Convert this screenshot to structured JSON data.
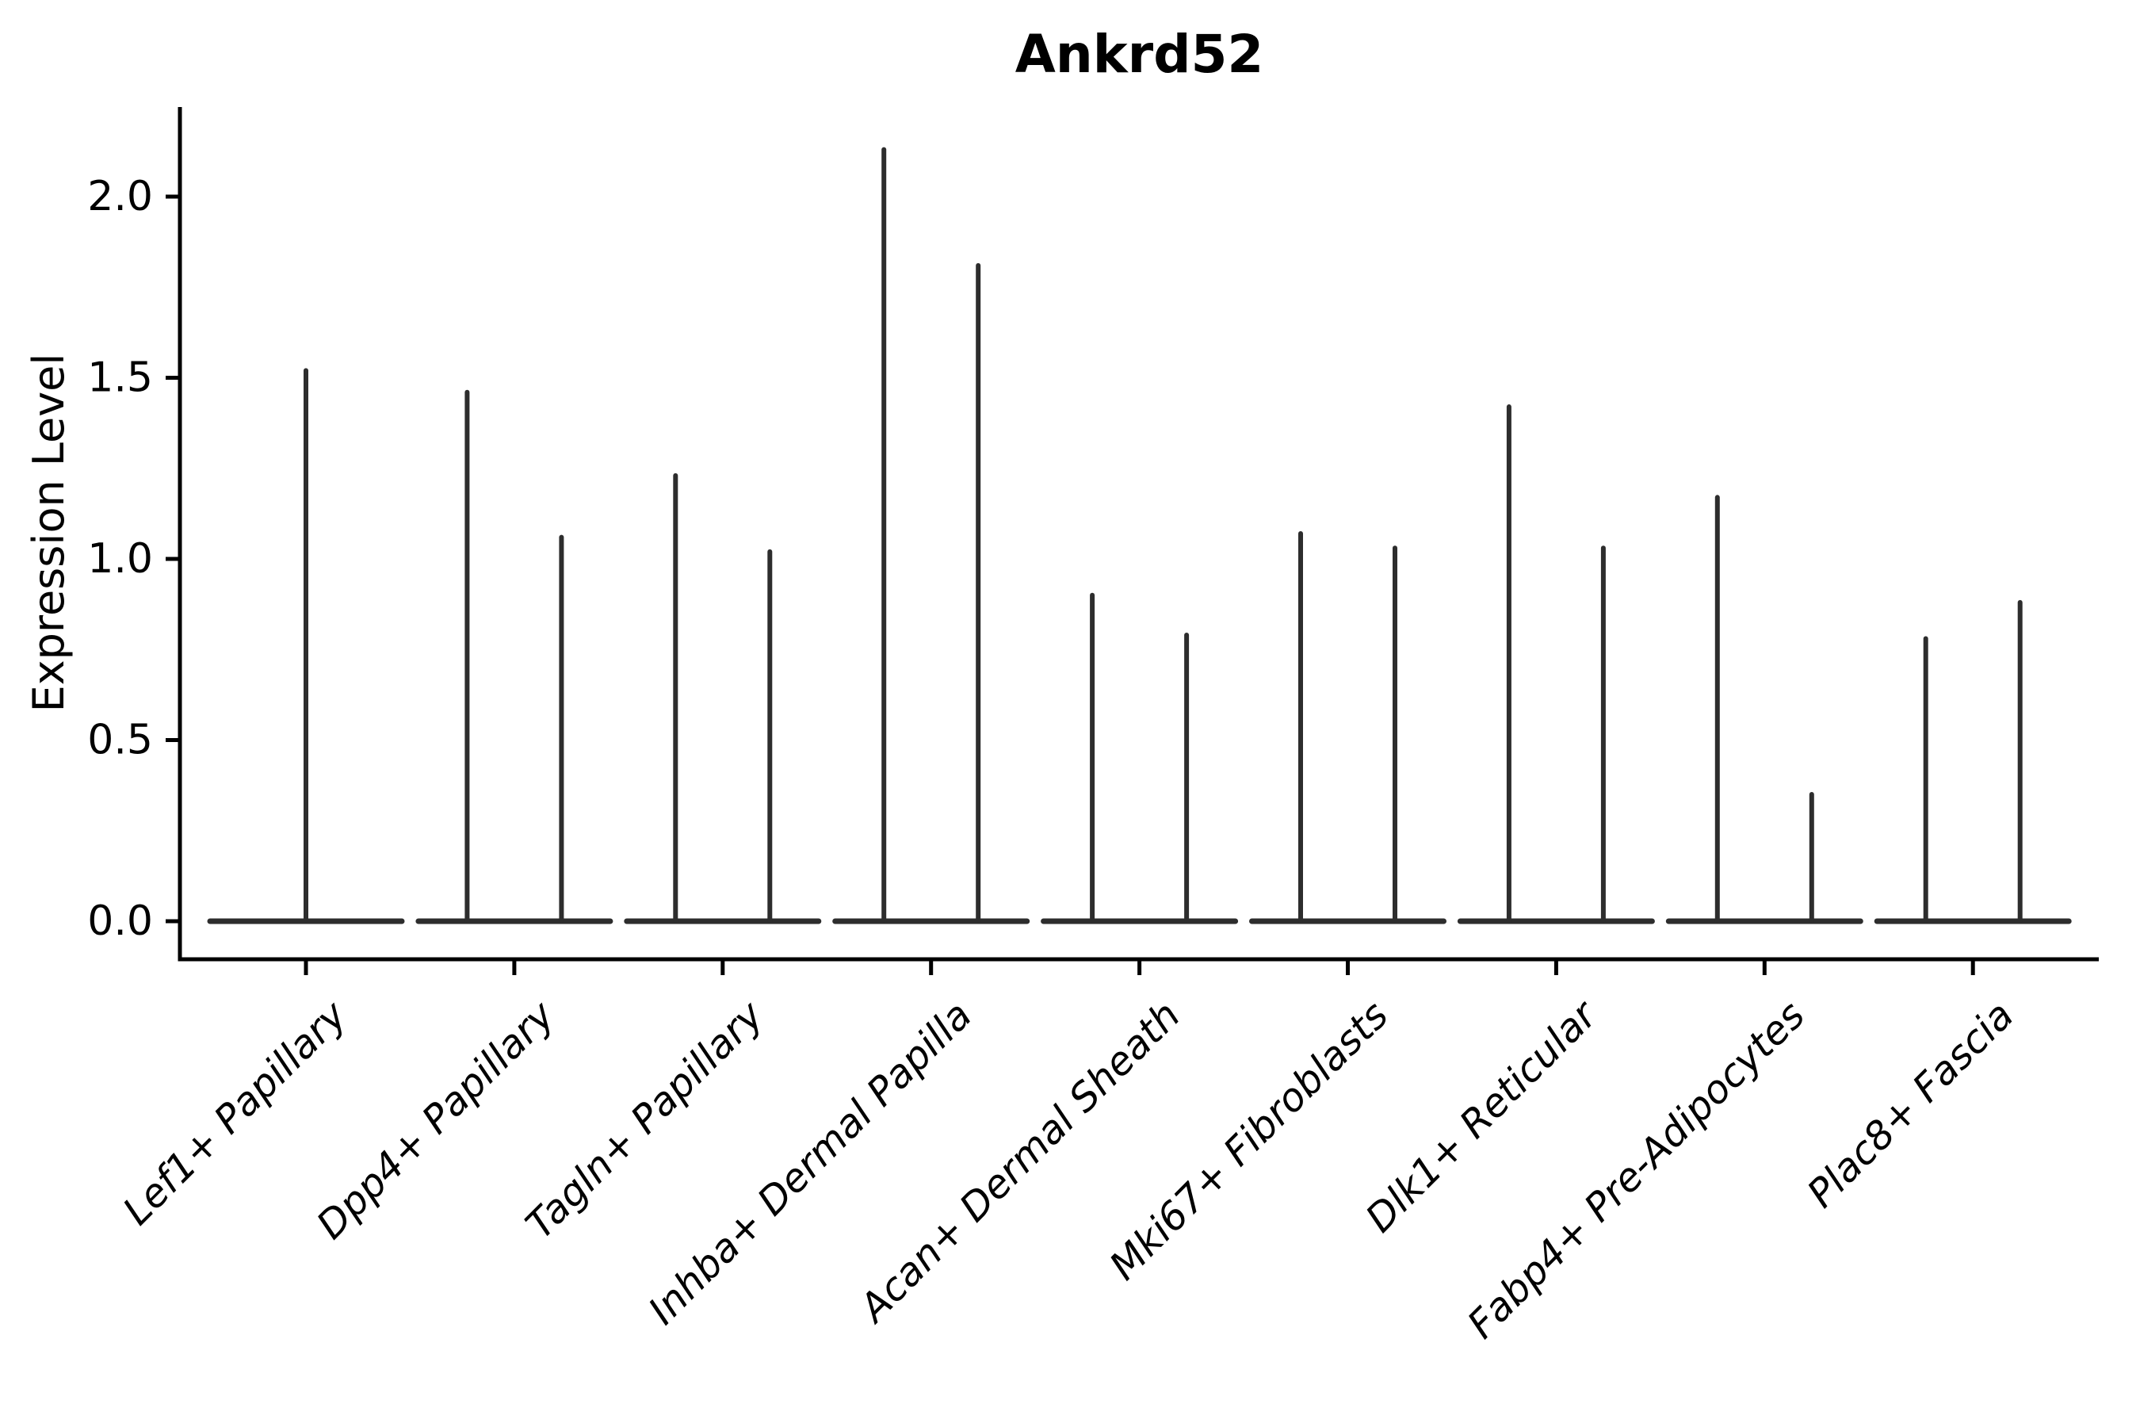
{
  "figure": {
    "title": "Ankrd52"
  },
  "chart_data": {
    "type": "violin",
    "title": "Ankrd52",
    "xlabel": "",
    "ylabel": "Expression Level",
    "ylim": [
      -0.1,
      2.25
    ],
    "yticks": [
      0.0,
      0.5,
      1.0,
      1.5,
      2.0
    ],
    "ytick_labels": [
      "0.0",
      "0.5",
      "1.0",
      "1.5",
      "2.0"
    ],
    "grid": false,
    "legend_position": "none",
    "violin_color": "#2d2d2d",
    "axis_color": "#000000",
    "background_color": "#ffffff",
    "baseline_value": 0.0,
    "categories": [
      "Lef1+ Papillary",
      "Dpp4+ Papillary",
      "Tagln+ Papillary",
      "Inhba+ Dermal Papilla",
      "Acan+ Dermal Sheath",
      "Mki67+ Fibroblasts",
      "Dlk1+ Reticular",
      "Fabp4+ Pre-Adipocytes",
      "Plac8+ Fascia"
    ],
    "series": [
      {
        "category": "Lef1+ Papillary",
        "max_expression": [
          1.52
        ]
      },
      {
        "category": "Dpp4+ Papillary",
        "max_expression": [
          1.46,
          1.06
        ]
      },
      {
        "category": "Tagln+ Papillary",
        "max_expression": [
          1.23,
          1.02
        ]
      },
      {
        "category": "Inhba+ Dermal Papilla",
        "max_expression": [
          2.13,
          1.81
        ]
      },
      {
        "category": "Acan+ Dermal Sheath",
        "max_expression": [
          0.9,
          0.79
        ]
      },
      {
        "category": "Mki67+ Fibroblasts",
        "max_expression": [
          1.07,
          1.03
        ]
      },
      {
        "category": "Dlk1+ Reticular",
        "max_expression": [
          1.42,
          1.03
        ]
      },
      {
        "category": "Fabp4+ Pre-Adipocytes",
        "max_expression": [
          1.17,
          0.35
        ]
      },
      {
        "category": "Plac8+ Fascia",
        "max_expression": [
          0.78,
          0.88
        ]
      }
    ]
  }
}
